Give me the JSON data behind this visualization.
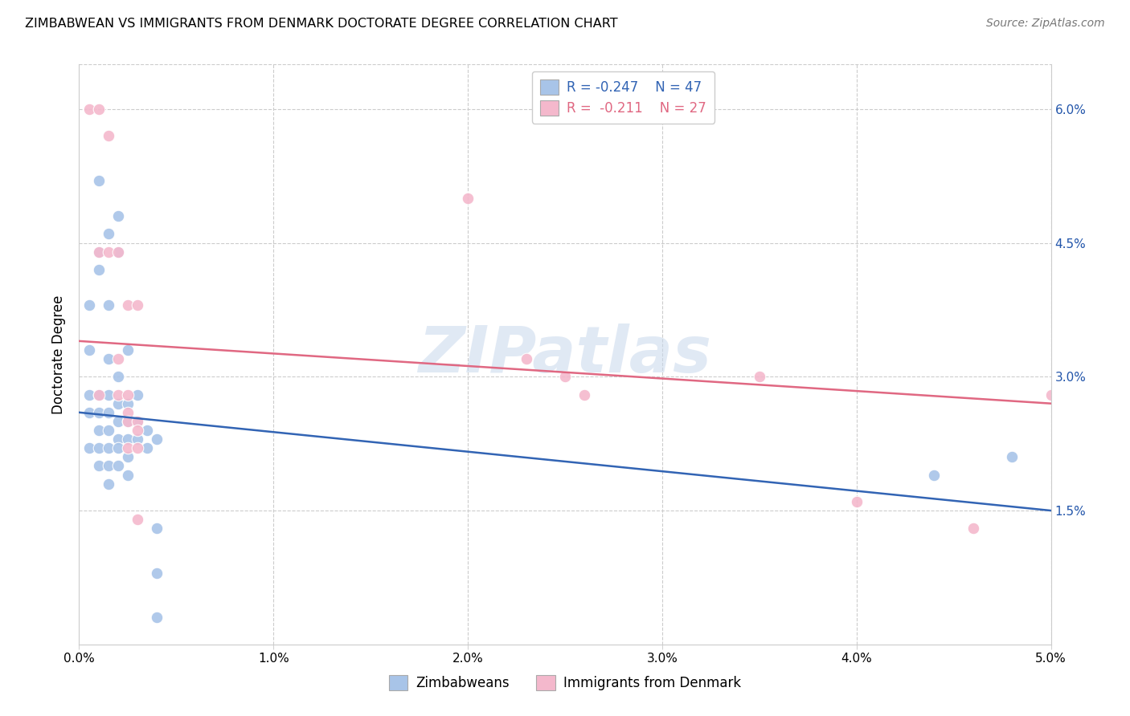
{
  "title": "ZIMBABWEAN VS IMMIGRANTS FROM DENMARK DOCTORATE DEGREE CORRELATION CHART",
  "source": "Source: ZipAtlas.com",
  "ylabel": "Doctorate Degree",
  "xlim": [
    0.0,
    0.05
  ],
  "ylim": [
    0.0,
    0.065
  ],
  "xtick_labels": [
    "0.0%",
    "1.0%",
    "2.0%",
    "3.0%",
    "4.0%",
    "5.0%"
  ],
  "xtick_vals": [
    0.0,
    0.01,
    0.02,
    0.03,
    0.04,
    0.05
  ],
  "ytick_labels": [
    "1.5%",
    "3.0%",
    "4.5%",
    "6.0%"
  ],
  "ytick_vals": [
    0.015,
    0.03,
    0.045,
    0.06
  ],
  "legend_blue_label": "R = -0.247    N = 47",
  "legend_pink_label": "R =  -0.211    N = 27",
  "legend_bottom_blue": "Zimbabweans",
  "legend_bottom_pink": "Immigrants from Denmark",
  "watermark": "ZIPatlas",
  "blue_color": "#a8c4e8",
  "pink_color": "#f4b8cc",
  "blue_line_color": "#3264b4",
  "pink_line_color": "#e06882",
  "blue_scatter": [
    [
      0.0005,
      0.038
    ],
    [
      0.0005,
      0.033
    ],
    [
      0.0005,
      0.028
    ],
    [
      0.0005,
      0.026
    ],
    [
      0.0005,
      0.022
    ],
    [
      0.001,
      0.052
    ],
    [
      0.001,
      0.044
    ],
    [
      0.001,
      0.042
    ],
    [
      0.001,
      0.028
    ],
    [
      0.001,
      0.026
    ],
    [
      0.001,
      0.024
    ],
    [
      0.001,
      0.022
    ],
    [
      0.001,
      0.02
    ],
    [
      0.0015,
      0.046
    ],
    [
      0.0015,
      0.038
    ],
    [
      0.0015,
      0.032
    ],
    [
      0.0015,
      0.028
    ],
    [
      0.0015,
      0.026
    ],
    [
      0.0015,
      0.024
    ],
    [
      0.0015,
      0.022
    ],
    [
      0.0015,
      0.02
    ],
    [
      0.0015,
      0.018
    ],
    [
      0.002,
      0.048
    ],
    [
      0.002,
      0.044
    ],
    [
      0.002,
      0.03
    ],
    [
      0.002,
      0.027
    ],
    [
      0.002,
      0.025
    ],
    [
      0.002,
      0.023
    ],
    [
      0.002,
      0.022
    ],
    [
      0.002,
      0.02
    ],
    [
      0.0025,
      0.033
    ],
    [
      0.0025,
      0.027
    ],
    [
      0.0025,
      0.025
    ],
    [
      0.0025,
      0.023
    ],
    [
      0.0025,
      0.021
    ],
    [
      0.0025,
      0.019
    ],
    [
      0.003,
      0.028
    ],
    [
      0.003,
      0.025
    ],
    [
      0.003,
      0.023
    ],
    [
      0.0035,
      0.024
    ],
    [
      0.0035,
      0.022
    ],
    [
      0.004,
      0.023
    ],
    [
      0.004,
      0.013
    ],
    [
      0.004,
      0.008
    ],
    [
      0.004,
      0.003
    ],
    [
      0.044,
      0.019
    ],
    [
      0.048,
      0.021
    ]
  ],
  "pink_scatter": [
    [
      0.0005,
      0.06
    ],
    [
      0.001,
      0.06
    ],
    [
      0.001,
      0.044
    ],
    [
      0.001,
      0.028
    ],
    [
      0.0015,
      0.057
    ],
    [
      0.0015,
      0.044
    ],
    [
      0.002,
      0.044
    ],
    [
      0.002,
      0.032
    ],
    [
      0.002,
      0.028
    ],
    [
      0.0025,
      0.038
    ],
    [
      0.0025,
      0.028
    ],
    [
      0.0025,
      0.026
    ],
    [
      0.0025,
      0.025
    ],
    [
      0.0025,
      0.022
    ],
    [
      0.003,
      0.038
    ],
    [
      0.003,
      0.025
    ],
    [
      0.003,
      0.024
    ],
    [
      0.003,
      0.022
    ],
    [
      0.003,
      0.014
    ],
    [
      0.02,
      0.05
    ],
    [
      0.023,
      0.032
    ],
    [
      0.025,
      0.03
    ],
    [
      0.026,
      0.028
    ],
    [
      0.035,
      0.03
    ],
    [
      0.04,
      0.016
    ],
    [
      0.046,
      0.013
    ],
    [
      0.05,
      0.028
    ]
  ],
  "blue_line": [
    [
      0.0,
      0.026
    ],
    [
      0.05,
      0.015
    ]
  ],
  "pink_line": [
    [
      0.0,
      0.034
    ],
    [
      0.05,
      0.027
    ]
  ]
}
